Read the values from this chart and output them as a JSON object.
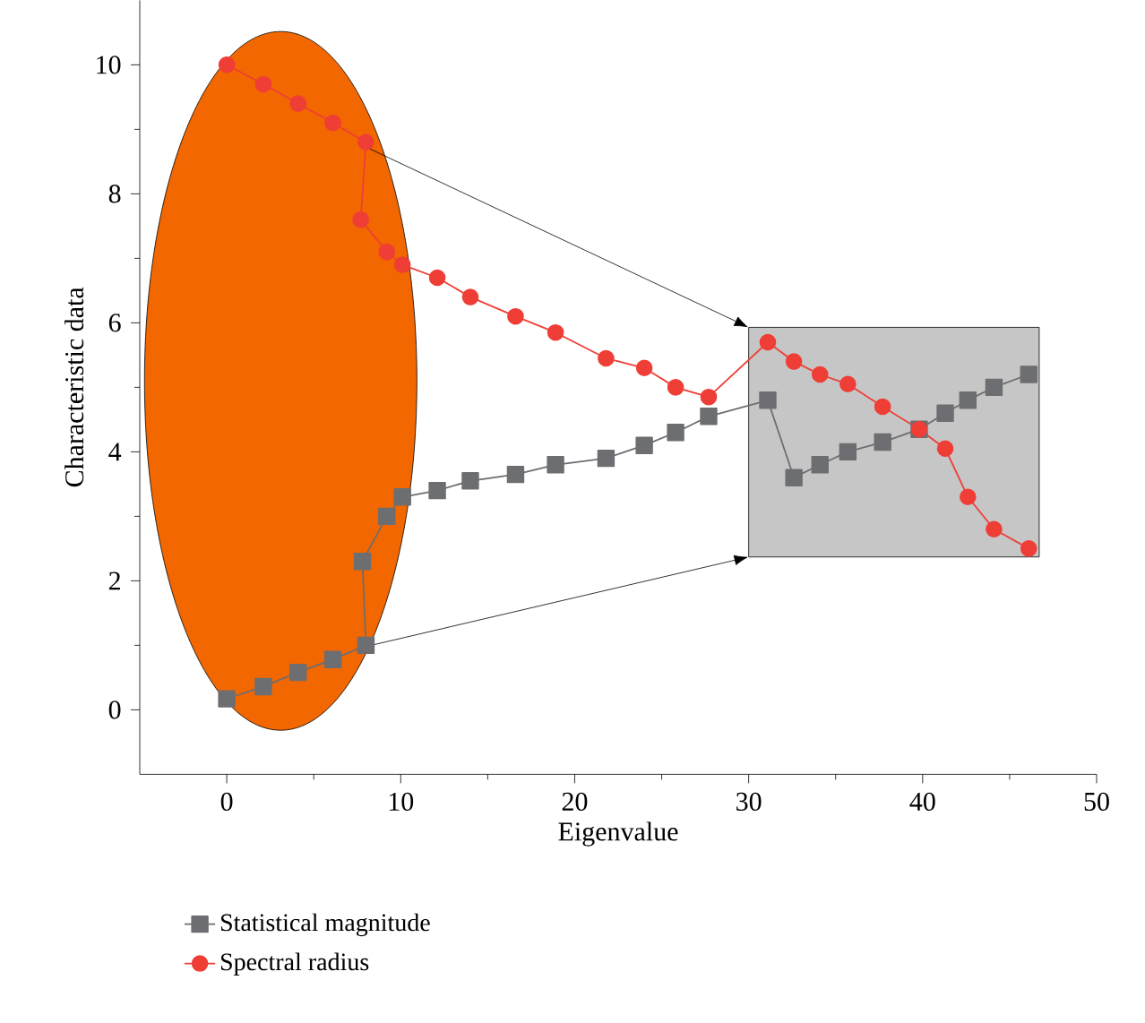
{
  "chart_data": {
    "type": "line",
    "xlabel": "Eigenvalue",
    "ylabel": "Characteristic data",
    "xlim": [
      -5,
      50
    ],
    "ylim": [
      -1,
      11
    ],
    "xticks": [
      0,
      10,
      20,
      30,
      40,
      50
    ],
    "yticks": [
      0,
      2,
      4,
      6,
      8,
      10
    ],
    "grid": false,
    "legend": "bottom",
    "series": [
      {
        "name": "Statistical magnitude",
        "color": "#6d6e71",
        "marker": "square",
        "x": [
          0,
          2.1,
          4.1,
          6.1,
          8.0,
          7.8,
          9.2,
          10.1,
          12.1,
          14.0,
          16.6,
          18.9,
          21.8,
          24.0,
          25.8,
          27.7,
          31.1,
          32.6,
          34.1,
          35.7,
          37.7,
          39.8,
          41.3,
          42.6,
          44.1,
          46.1
        ],
        "values": [
          0.17,
          0.36,
          0.58,
          0.78,
          1.0,
          2.3,
          3.0,
          3.3,
          3.4,
          3.55,
          3.65,
          3.8,
          3.9,
          4.1,
          4.3,
          4.55,
          4.8,
          3.6,
          3.8,
          4.0,
          4.15,
          4.35,
          4.6,
          4.8,
          5.0,
          5.2
        ]
      },
      {
        "name": "Spectral radius",
        "color": "#ef3e36",
        "marker": "circle",
        "x": [
          0,
          2.1,
          4.1,
          6.1,
          8.0,
          7.7,
          9.2,
          10.1,
          12.1,
          14.0,
          16.6,
          18.9,
          21.8,
          24.0,
          25.8,
          27.7,
          31.1,
          32.6,
          34.1,
          35.7,
          37.7,
          39.8,
          41.3,
          42.6,
          44.1,
          46.1
        ],
        "values": [
          10.0,
          9.7,
          9.4,
          9.1,
          8.8,
          7.6,
          7.1,
          6.9,
          6.7,
          6.4,
          6.1,
          5.85,
          5.45,
          5.3,
          5.0,
          4.85,
          5.7,
          5.4,
          5.2,
          5.05,
          4.7,
          4.35,
          4.05,
          3.3,
          2.8,
          2.5
        ]
      }
    ]
  }
}
